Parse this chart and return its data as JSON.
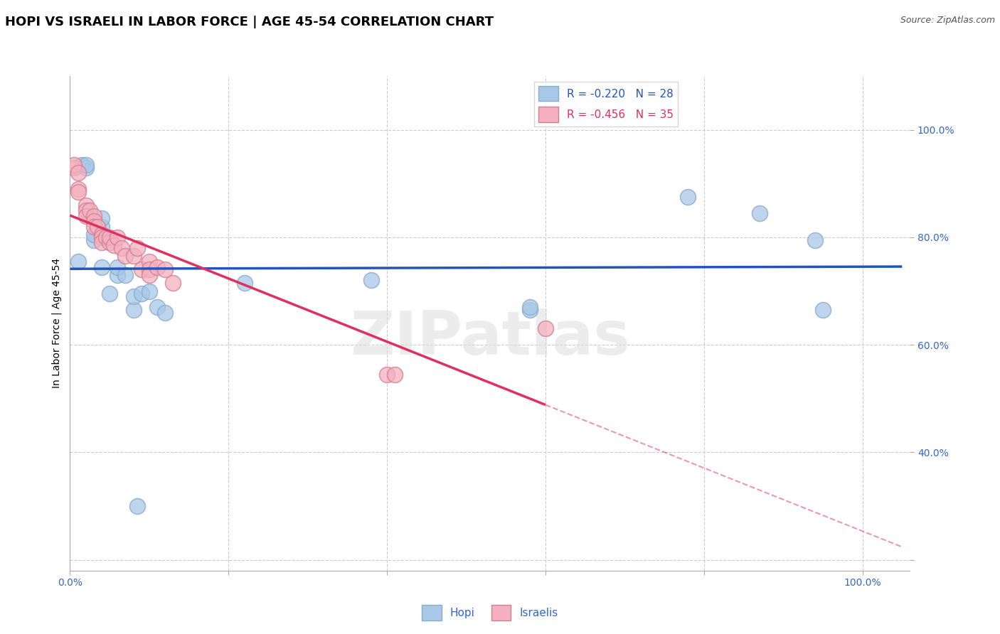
{
  "title": "HOPI VS ISRAELI IN LABOR FORCE | AGE 45-54 CORRELATION CHART",
  "source": "Source: ZipAtlas.com",
  "ylabel_label": "In Labor Force | Age 45-54",
  "hopi_R": -0.22,
  "hopi_N": 28,
  "israeli_R": -0.456,
  "israeli_N": 35,
  "hopi_color": "#A8C8E8",
  "israeli_color": "#F4B0C0",
  "hopi_line_color": "#2255BB",
  "israeli_line_color": "#E03060",
  "hopi_edge_color": "#88AACC",
  "israeli_edge_color": "#D08090",
  "background_color": "#FFFFFF",
  "grid_color": "#CCCCCC",
  "title_fontsize": 13,
  "label_fontsize": 10,
  "tick_fontsize": 10,
  "legend_fontsize": 11,
  "watermark_color": "#DDDDDD",
  "xlim": [
    0.0,
    1.06
  ],
  "ylim": [
    0.18,
    1.1
  ],
  "hopi_x": [
    0.01,
    0.015,
    0.02,
    0.02,
    0.03,
    0.03,
    0.04,
    0.04,
    0.04,
    0.05,
    0.06,
    0.06,
    0.07,
    0.08,
    0.08,
    0.085,
    0.09,
    0.1,
    0.11,
    0.12,
    0.22,
    0.38,
    0.58,
    0.58,
    0.78,
    0.87,
    0.94,
    0.95
  ],
  "hopi_y": [
    0.755,
    0.935,
    0.93,
    0.935,
    0.795,
    0.805,
    0.82,
    0.835,
    0.745,
    0.695,
    0.73,
    0.745,
    0.73,
    0.665,
    0.69,
    0.3,
    0.695,
    0.7,
    0.67,
    0.66,
    0.715,
    0.72,
    0.665,
    0.67,
    0.875,
    0.845,
    0.795,
    0.665
  ],
  "israeli_x": [
    0.005,
    0.005,
    0.01,
    0.01,
    0.01,
    0.02,
    0.02,
    0.02,
    0.025,
    0.03,
    0.03,
    0.03,
    0.035,
    0.04,
    0.04,
    0.04,
    0.045,
    0.05,
    0.05,
    0.055,
    0.06,
    0.065,
    0.07,
    0.08,
    0.085,
    0.09,
    0.1,
    0.1,
    0.1,
    0.11,
    0.12,
    0.13,
    0.4,
    0.41,
    0.6
  ],
  "israeli_y": [
    0.93,
    0.935,
    0.92,
    0.89,
    0.885,
    0.86,
    0.85,
    0.84,
    0.85,
    0.84,
    0.83,
    0.82,
    0.82,
    0.805,
    0.8,
    0.79,
    0.8,
    0.79,
    0.8,
    0.785,
    0.8,
    0.78,
    0.765,
    0.765,
    0.78,
    0.74,
    0.755,
    0.74,
    0.73,
    0.745,
    0.74,
    0.715,
    0.545,
    0.545,
    0.63
  ]
}
